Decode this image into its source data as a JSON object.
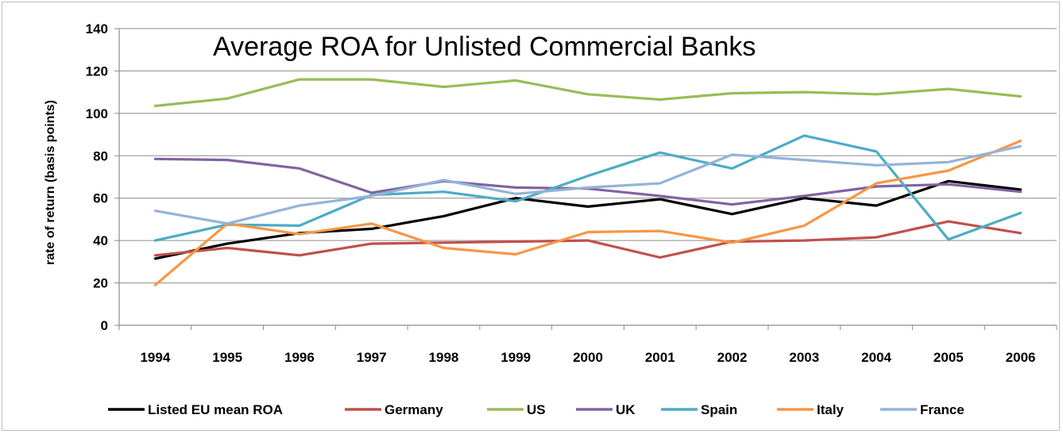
{
  "chart_data": {
    "type": "line",
    "title": "Average ROA for Unlisted Commercial Banks",
    "xlabel": "",
    "ylabel": "rate of return (basis points)",
    "ylim": [
      0,
      140
    ],
    "yticks": [
      0,
      20,
      40,
      60,
      80,
      100,
      120,
      140
    ],
    "grid": true,
    "legend": "bottom",
    "x": [
      "1994",
      "1995",
      "1996",
      "1997",
      "1998",
      "1999",
      "2000",
      "2001",
      "2002",
      "2003",
      "2004",
      "2005",
      "2006"
    ],
    "series": [
      {
        "name": "Listed EU mean ROA",
        "color": "#000000",
        "values": [
          31.5,
          38.5,
          43.5,
          45.5,
          51.5,
          60.0,
          56.0,
          59.5,
          52.5,
          60.0,
          56.5,
          68.0,
          64.0
        ]
      },
      {
        "name": "Germany",
        "color": "#c0504d",
        "values": [
          33.0,
          36.5,
          33.0,
          38.5,
          39.0,
          39.5,
          40.0,
          32.0,
          39.5,
          40.0,
          41.5,
          49.0,
          43.5
        ]
      },
      {
        "name": "US",
        "color": "#9bbb59",
        "values": [
          103.5,
          107.0,
          116.0,
          116.0,
          112.5,
          115.5,
          109.0,
          106.5,
          109.5,
          110.0,
          109.0,
          111.5,
          108.0
        ]
      },
      {
        "name": "UK",
        "color": "#8064a2",
        "values": [
          78.5,
          78.0,
          74.0,
          62.5,
          68.0,
          65.0,
          64.5,
          61.0,
          57.0,
          61.0,
          65.5,
          66.5,
          63.0
        ]
      },
      {
        "name": "Spain",
        "color": "#4bacc6",
        "values": [
          40.0,
          47.5,
          47.0,
          61.5,
          63.0,
          58.5,
          70.5,
          81.5,
          74.0,
          89.5,
          82.0,
          40.5,
          53.0
        ]
      },
      {
        "name": "Italy",
        "color": "#f79646",
        "values": [
          19.0,
          48.0,
          43.0,
          48.0,
          36.5,
          33.5,
          44.0,
          44.5,
          39.0,
          47.0,
          67.0,
          73.0,
          87.0
        ]
      },
      {
        "name": "France",
        "color": "#95b3d7",
        "values": [
          54.0,
          48.0,
          56.5,
          61.0,
          68.5,
          62.0,
          65.0,
          67.0,
          80.5,
          78.0,
          75.5,
          77.0,
          84.5
        ]
      }
    ]
  }
}
